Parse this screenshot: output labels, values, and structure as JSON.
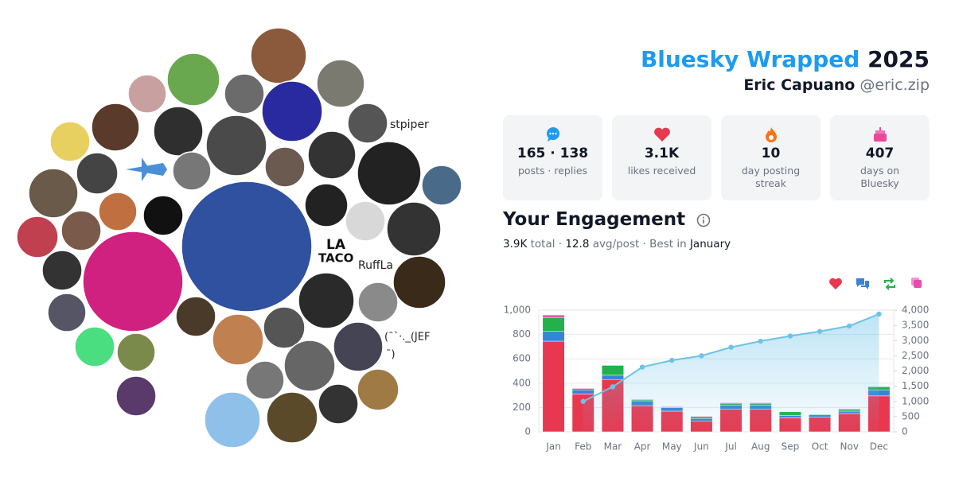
{
  "header": {
    "title": "Bluesky Wrapped",
    "year": "2025",
    "name": "Eric Capuano",
    "handle": "@eric.zip"
  },
  "stats": [
    {
      "value": "165 · 138",
      "label": "posts · replies"
    },
    {
      "value": "3.1K",
      "label": "likes received"
    },
    {
      "value": "10",
      "label": "day posting streak"
    },
    {
      "value": "407",
      "label": "days on Bluesky"
    }
  ],
  "avatars": {
    "alt_texts": [
      "stpiper",
      "RuffLa",
      "(¯`·._(JEF",
      "¯)"
    ],
    "logo_texts": [
      "LA",
      "TACO"
    ]
  },
  "engagement": {
    "title": "Your Engagement",
    "total": "3.9K",
    "total_label": "total · ",
    "avg": "12.8",
    "avg_label": "avg/post · Best in",
    "best": "January"
  },
  "chart_data": {
    "type": "bar",
    "categories": [
      "Jan",
      "Feb",
      "Mar",
      "Apr",
      "May",
      "Jun",
      "Jul",
      "Aug",
      "Sep",
      "Oct",
      "Nov",
      "Dec"
    ],
    "series": [
      {
        "color": "#e8384f",
        "values": [
          745,
          310,
          430,
          215,
          170,
          90,
          185,
          185,
          115,
          120,
          150,
          295
        ]
      },
      {
        "color": "#3b82d6",
        "values": [
          80,
          35,
          35,
          40,
          30,
          20,
          35,
          35,
          20,
          20,
          20,
          50
        ]
      },
      {
        "color": "#22b14c",
        "values": [
          115,
          10,
          80,
          10,
          5,
          15,
          15,
          15,
          30,
          5,
          15,
          25
        ]
      },
      {
        "color": "#e84bb0",
        "values": [
          20,
          5,
          5,
          5,
          5,
          5,
          5,
          5,
          0,
          0,
          5,
          5
        ]
      },
      {
        "type": "line",
        "axis": "y2",
        "color": "#6cc3ea",
        "values": [
          null,
          1000,
          1480,
          2130,
          2350,
          2500,
          2780,
          2980,
          3150,
          3300,
          3480,
          3870
        ]
      }
    ],
    "ylim": [
      0,
      1000
    ],
    "yticks": [
      0,
      200,
      400,
      600,
      800,
      {
        "value": 1000,
        "label": "1,000"
      }
    ],
    "y2lim": [
      0,
      4000
    ],
    "y2ticks": [
      0,
      500,
      {
        "value": 1000,
        "label": "1,000"
      },
      {
        "value": 1500,
        "label": "1,500"
      },
      {
        "value": 2000,
        "label": "2,000"
      },
      {
        "value": 2500,
        "label": "2,500"
      },
      {
        "value": 3000,
        "label": "3,000"
      },
      {
        "value": 3500,
        "label": "3,500"
      },
      {
        "value": 4000,
        "label": "4,000"
      }
    ],
    "grid": true
  }
}
